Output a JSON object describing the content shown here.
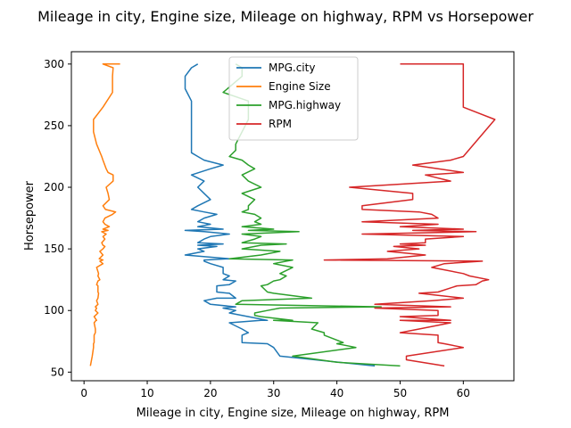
{
  "chart_data": {
    "type": "line",
    "title": "Mileage in city, Engine size, Mileage on highway, RPM vs Horsepower",
    "xlabel": "Mileage in city, Engine size, Mileage on highway, RPM",
    "ylabel": "Horsepower",
    "xlim": [
      -2,
      68
    ],
    "ylim": [
      43,
      310
    ],
    "xticks": [
      0,
      10,
      20,
      30,
      40,
      50,
      60
    ],
    "yticks": [
      50,
      100,
      150,
      200,
      250,
      300
    ],
    "grid": false,
    "legend_placement": "top-center",
    "series": [
      {
        "name": "MPG.city",
        "color": "#1f77b4",
        "points": [
          [
            46,
            55
          ],
          [
            31,
            63
          ],
          [
            30,
            70
          ],
          [
            29,
            73
          ],
          [
            25,
            74
          ],
          [
            25,
            80
          ],
          [
            26,
            82
          ],
          [
            25,
            85
          ],
          [
            23,
            90
          ],
          [
            28,
            92
          ],
          [
            29,
            92
          ],
          [
            26,
            95
          ],
          [
            25,
            96
          ],
          [
            23,
            98
          ],
          [
            24,
            100
          ],
          [
            22,
            102
          ],
          [
            24,
            103
          ],
          [
            20,
            105
          ],
          [
            19,
            108
          ],
          [
            21,
            110
          ],
          [
            24,
            110
          ],
          [
            23,
            114
          ],
          [
            21,
            115
          ],
          [
            21,
            120
          ],
          [
            23,
            121
          ],
          [
            24,
            124
          ],
          [
            22,
            125
          ],
          [
            23,
            128
          ],
          [
            22,
            130
          ],
          [
            22,
            135
          ],
          [
            20,
            138
          ],
          [
            19,
            140
          ],
          [
            19,
            141
          ],
          [
            23,
            142
          ],
          [
            16,
            145
          ],
          [
            19,
            148
          ],
          [
            18,
            150
          ],
          [
            21,
            152
          ],
          [
            18,
            153
          ],
          [
            22,
            154
          ],
          [
            18,
            155
          ],
          [
            19,
            158
          ],
          [
            20,
            160
          ],
          [
            23,
            162
          ],
          [
            19,
            164
          ],
          [
            16,
            165
          ],
          [
            22,
            166
          ],
          [
            18,
            168
          ],
          [
            20,
            170
          ],
          [
            18,
            172
          ],
          [
            19,
            175
          ],
          [
            21,
            178
          ],
          [
            19,
            180
          ],
          [
            17,
            182
          ],
          [
            18,
            185
          ],
          [
            20,
            190
          ],
          [
            19,
            195
          ],
          [
            18,
            200
          ],
          [
            19,
            205
          ],
          [
            17,
            210
          ],
          [
            20,
            215
          ],
          [
            22,
            218
          ],
          [
            19,
            222
          ],
          [
            18,
            225
          ],
          [
            17,
            228
          ],
          [
            17,
            235
          ],
          [
            17,
            245
          ],
          [
            17,
            255
          ],
          [
            17,
            270
          ],
          [
            16,
            280
          ],
          [
            16,
            290
          ],
          [
            17,
            297
          ],
          [
            18,
            300
          ]
        ]
      },
      {
        "name": "Engine Size",
        "color": "#ff7f0e",
        "points": [
          [
            1.0,
            55
          ],
          [
            1.3,
            63
          ],
          [
            1.5,
            70
          ],
          [
            1.5,
            73
          ],
          [
            1.6,
            74
          ],
          [
            1.6,
            80
          ],
          [
            1.8,
            82
          ],
          [
            1.8,
            85
          ],
          [
            1.6,
            90
          ],
          [
            1.9,
            92
          ],
          [
            2.0,
            92
          ],
          [
            1.6,
            95
          ],
          [
            1.8,
            96
          ],
          [
            2.2,
            98
          ],
          [
            1.8,
            100
          ],
          [
            2.0,
            102
          ],
          [
            1.8,
            103
          ],
          [
            2.2,
            105
          ],
          [
            2.0,
            108
          ],
          [
            2.2,
            110
          ],
          [
            2.3,
            114
          ],
          [
            2.2,
            115
          ],
          [
            2.2,
            120
          ],
          [
            2.0,
            121
          ],
          [
            2.2,
            124
          ],
          [
            2.5,
            125
          ],
          [
            2.2,
            128
          ],
          [
            2.3,
            130
          ],
          [
            2.0,
            135
          ],
          [
            3.0,
            138
          ],
          [
            2.5,
            140
          ],
          [
            3.0,
            141
          ],
          [
            2.4,
            142
          ],
          [
            3.0,
            145
          ],
          [
            2.5,
            148
          ],
          [
            3.0,
            150
          ],
          [
            3.3,
            152
          ],
          [
            3.0,
            153
          ],
          [
            2.8,
            155
          ],
          [
            3.3,
            158
          ],
          [
            3.0,
            160
          ],
          [
            3.5,
            162
          ],
          [
            2.8,
            164
          ],
          [
            3.8,
            165
          ],
          [
            3.0,
            166
          ],
          [
            4.0,
            168
          ],
          [
            3.3,
            170
          ],
          [
            3.0,
            172
          ],
          [
            3.3,
            175
          ],
          [
            4.5,
            178
          ],
          [
            5.0,
            180
          ],
          [
            3.4,
            182
          ],
          [
            3.0,
            185
          ],
          [
            4.0,
            190
          ],
          [
            3.8,
            195
          ],
          [
            3.5,
            200
          ],
          [
            4.6,
            205
          ],
          [
            4.6,
            210
          ],
          [
            3.8,
            212
          ],
          [
            3.5,
            215
          ],
          [
            3.0,
            222
          ],
          [
            2.8,
            225
          ],
          [
            2.0,
            235
          ],
          [
            1.5,
            245
          ],
          [
            1.5,
            255
          ],
          [
            3.0,
            265
          ],
          [
            4.5,
            277
          ],
          [
            4.5,
            290
          ],
          [
            4.6,
            297
          ],
          [
            3.0,
            300
          ],
          [
            5.7,
            300
          ]
        ]
      },
      {
        "name": "MPG.highway",
        "color": "#2ca02c",
        "points": [
          [
            50,
            55
          ],
          [
            40,
            58
          ],
          [
            33,
            63
          ],
          [
            43,
            70
          ],
          [
            40,
            73
          ],
          [
            41,
            74
          ],
          [
            38,
            80
          ],
          [
            38,
            82
          ],
          [
            36,
            85
          ],
          [
            37,
            90
          ],
          [
            30,
            92
          ],
          [
            33,
            92
          ],
          [
            28,
            95
          ],
          [
            27,
            96
          ],
          [
            27,
            98
          ],
          [
            29,
            100
          ],
          [
            31,
            102
          ],
          [
            47,
            103
          ],
          [
            24,
            105
          ],
          [
            25,
            108
          ],
          [
            36,
            110
          ],
          [
            30,
            114
          ],
          [
            29,
            115
          ],
          [
            28,
            120
          ],
          [
            29,
            121
          ],
          [
            30,
            124
          ],
          [
            31,
            125
          ],
          [
            32,
            128
          ],
          [
            31,
            130
          ],
          [
            33,
            135
          ],
          [
            30,
            138
          ],
          [
            32,
            140
          ],
          [
            33,
            141
          ],
          [
            23,
            142
          ],
          [
            28,
            145
          ],
          [
            31,
            148
          ],
          [
            25,
            150
          ],
          [
            27,
            152
          ],
          [
            28,
            153
          ],
          [
            32,
            154
          ],
          [
            25,
            155
          ],
          [
            27,
            158
          ],
          [
            28,
            160
          ],
          [
            25,
            162
          ],
          [
            34,
            164
          ],
          [
            26,
            165
          ],
          [
            30,
            166
          ],
          [
            25,
            168
          ],
          [
            28,
            170
          ],
          [
            27,
            172
          ],
          [
            28,
            175
          ],
          [
            27,
            178
          ],
          [
            25,
            180
          ],
          [
            26,
            182
          ],
          [
            26,
            185
          ],
          [
            27,
            190
          ],
          [
            25,
            195
          ],
          [
            28,
            200
          ],
          [
            26,
            205
          ],
          [
            25,
            210
          ],
          [
            27,
            215
          ],
          [
            26,
            218
          ],
          [
            25,
            222
          ],
          [
            23,
            225
          ],
          [
            24,
            230
          ],
          [
            24,
            235
          ],
          [
            25,
            245
          ],
          [
            26,
            255
          ],
          [
            26,
            270
          ],
          [
            22,
            277
          ],
          [
            25,
            290
          ],
          [
            25,
            297
          ],
          [
            24,
            300
          ]
        ]
      },
      {
        "name": "RPM",
        "color": "#d62728",
        "points": [
          [
            57,
            55
          ],
          [
            51,
            60
          ],
          [
            51,
            63
          ],
          [
            60,
            70
          ],
          [
            57,
            73
          ],
          [
            56,
            74
          ],
          [
            56,
            80
          ],
          [
            50,
            82
          ],
          [
            53,
            85
          ],
          [
            58,
            90
          ],
          [
            50,
            92
          ],
          [
            58,
            92
          ],
          [
            50,
            95
          ],
          [
            56,
            96
          ],
          [
            56,
            98
          ],
          [
            56,
            100
          ],
          [
            46,
            102
          ],
          [
            58,
            103
          ],
          [
            46,
            105
          ],
          [
            55,
            108
          ],
          [
            60,
            110
          ],
          [
            53,
            114
          ],
          [
            56,
            115
          ],
          [
            59,
            120
          ],
          [
            62,
            121
          ],
          [
            63,
            124
          ],
          [
            64,
            125
          ],
          [
            61,
            128
          ],
          [
            60,
            130
          ],
          [
            55,
            135
          ],
          [
            57,
            138
          ],
          [
            63,
            140
          ],
          [
            38,
            141
          ],
          [
            48,
            142
          ],
          [
            54,
            145
          ],
          [
            48,
            148
          ],
          [
            53,
            150
          ],
          [
            49,
            152
          ],
          [
            54,
            153
          ],
          [
            50,
            154
          ],
          [
            54,
            155
          ],
          [
            54,
            158
          ],
          [
            60,
            160
          ],
          [
            44,
            162
          ],
          [
            62,
            164
          ],
          [
            52,
            165
          ],
          [
            60,
            166
          ],
          [
            50,
            168
          ],
          [
            56,
            170
          ],
          [
            44,
            172
          ],
          [
            56,
            175
          ],
          [
            55,
            178
          ],
          [
            53,
            180
          ],
          [
            44,
            182
          ],
          [
            44,
            185
          ],
          [
            52,
            190
          ],
          [
            52,
            195
          ],
          [
            42,
            200
          ],
          [
            58,
            205
          ],
          [
            54,
            210
          ],
          [
            60,
            212
          ],
          [
            56,
            215
          ],
          [
            52,
            218
          ],
          [
            58,
            222
          ],
          [
            60,
            225
          ],
          [
            65,
            255
          ],
          [
            60,
            265
          ],
          [
            60,
            280
          ],
          [
            60,
            290
          ],
          [
            60,
            300
          ],
          [
            50,
            300
          ]
        ]
      }
    ]
  }
}
